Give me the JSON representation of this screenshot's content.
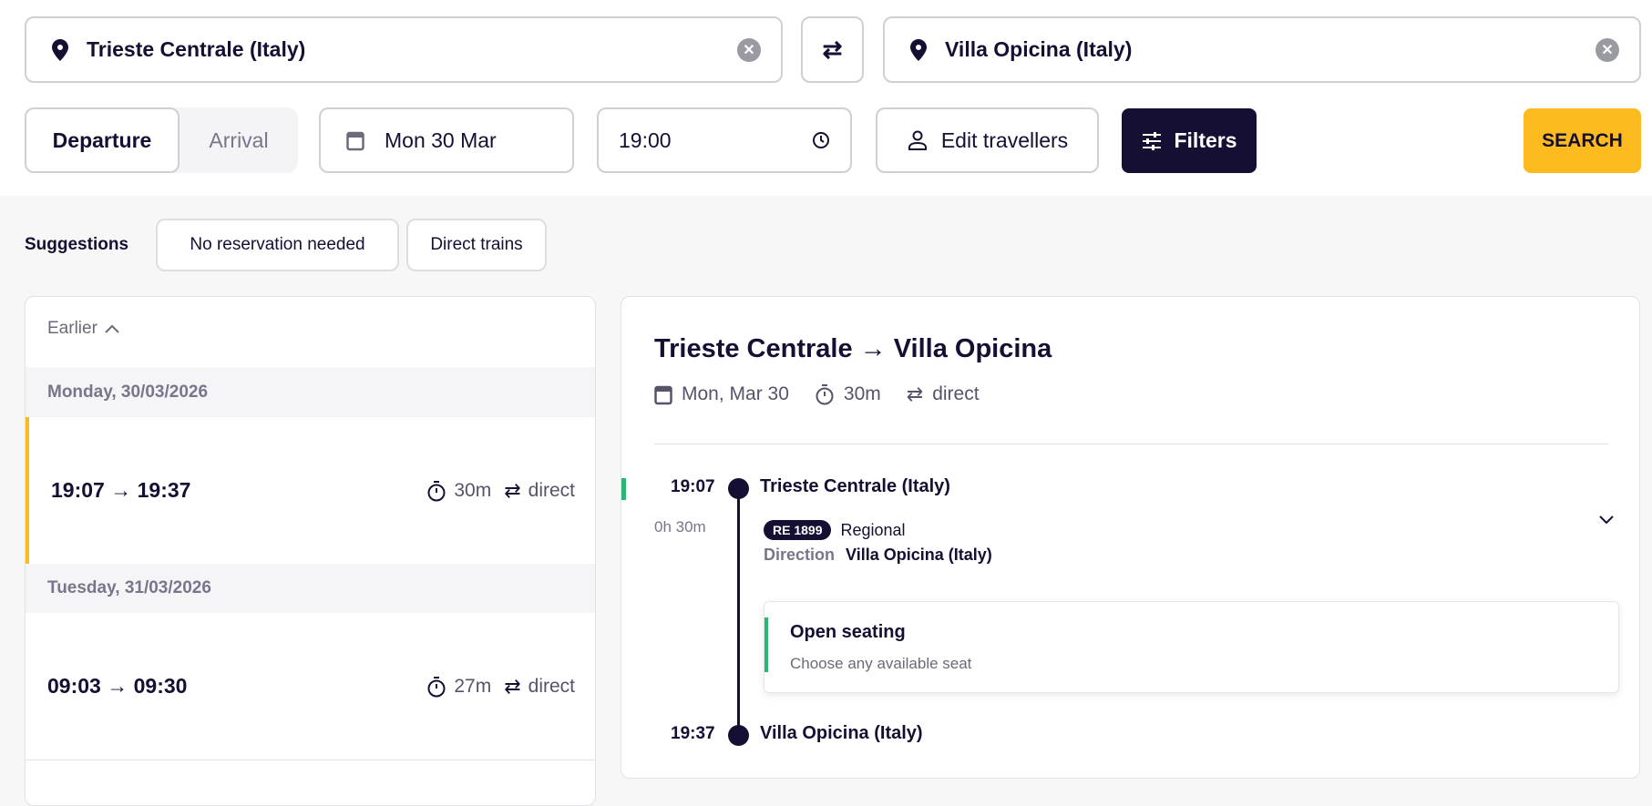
{
  "search": {
    "from": "Trieste Centrale (Italy)",
    "to": "Villa Opicina (Italy)",
    "mode_options": [
      "Departure",
      "Arrival"
    ],
    "selected_mode": "Departure",
    "date": "Mon 30 Mar",
    "time": "19:00",
    "travellers_label": "Edit travellers",
    "filters_label": "Filters",
    "search_label": "SEARCH"
  },
  "suggestions": {
    "label": "Suggestions",
    "chips": [
      "No reservation needed",
      "Direct trains"
    ]
  },
  "results": {
    "earlier_label": "Earlier",
    "days": [
      {
        "header": "Monday, 30/03/2026",
        "trips": [
          {
            "times": "19:07 → 19:37",
            "duration": "30m",
            "changes": "direct",
            "selected": true
          }
        ]
      },
      {
        "header": "Tuesday, 31/03/2026",
        "trips": [
          {
            "times": "09:03 → 09:30",
            "duration": "27m",
            "changes": "direct",
            "selected": false
          }
        ]
      }
    ]
  },
  "detail": {
    "title": "Trieste Centrale → Villa Opicina",
    "date": "Mon, Mar 30",
    "duration": "30m",
    "changes": "direct",
    "dep_time": "19:07",
    "dep_station": "Trieste Centrale (Italy)",
    "leg_duration": "0h 30m",
    "train_badge": "RE 1899",
    "train_type": "Regional",
    "direction_label": "Direction",
    "direction": "Villa Opicina (Italy)",
    "seating_title": "Open seating",
    "seating_sub": "Choose any available seat",
    "arr_time": "19:37",
    "arr_station": "Villa Opicina (Italy)"
  },
  "colors": {
    "brand": "#140f33",
    "accent": "#fdbb1f",
    "green": "#2bb673"
  }
}
